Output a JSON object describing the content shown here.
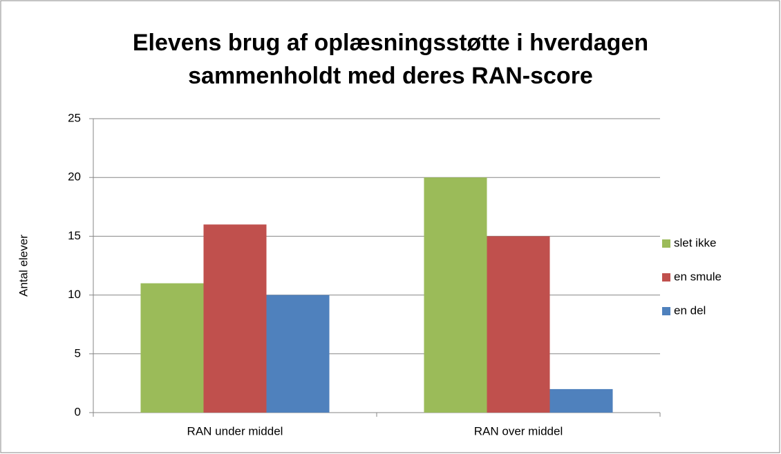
{
  "chart_data": {
    "type": "bar",
    "title": "Elevens brug af oplæsningsstøtte i hverdagen sammenholdt med deres RAN-score",
    "y_label": "Antal elever",
    "categories": [
      "RAN under middel",
      "RAN over middel"
    ],
    "series": [
      {
        "name": "slet ikke",
        "color": "#9bbb59",
        "values": [
          11,
          20
        ]
      },
      {
        "name": "en smule",
        "color": "#c0504d",
        "values": [
          16,
          15
        ]
      },
      {
        "name": "en del",
        "color": "#4f81bd",
        "values": [
          10,
          2
        ]
      }
    ],
    "ylim": [
      0,
      25
    ],
    "yticks": [
      0,
      5,
      10,
      15,
      20,
      25
    ],
    "grid": true,
    "legend": "right"
  }
}
